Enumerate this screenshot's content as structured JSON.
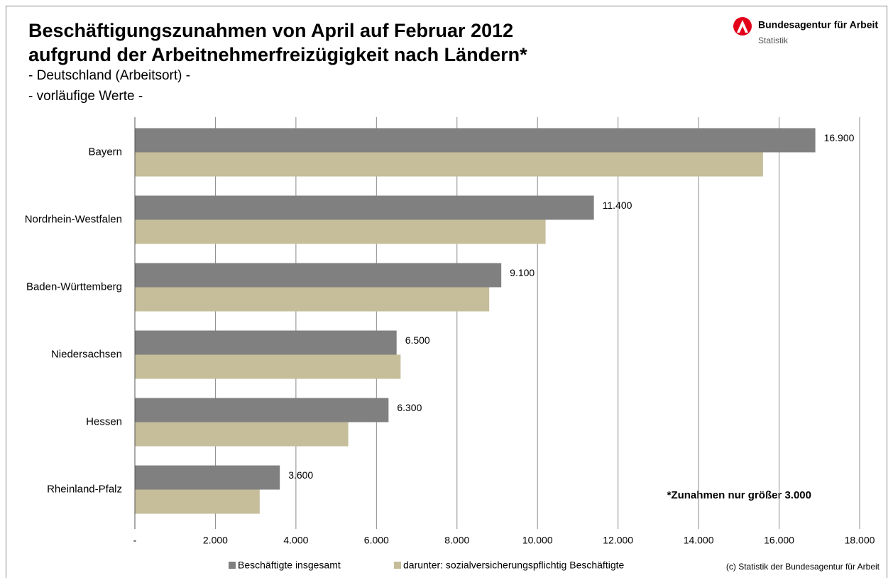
{
  "chart_data": {
    "type": "hbar",
    "title": "Beschäftigungszunahmen von April auf Februar 2012",
    "title_line2": "aufgrund der Arbeitnehmerfreizügigkeit nach Ländern*",
    "subtitle": "- Deutschland (Arbeitsort) -",
    "subtitle2": "- vorläufige Werte -",
    "logo_text": "Bundesagentur für Arbeit",
    "logo_subtext": "Statistik",
    "annotation": "*Zunahmen nur größer 3.000",
    "source": "(c) Statistik der Bundesagentur für Arbeit",
    "categories": [
      "Bayern",
      "Nordrhein-Westfalen",
      "Baden-Württemberg",
      "Niedersachsen",
      "Hessen",
      "Rheinland-Pfalz"
    ],
    "series": [
      {
        "name": "Beschäftigte insgesamt",
        "color": "#808080",
        "values": [
          16900,
          11400,
          9100,
          6500,
          6300,
          3600
        ],
        "value_labels": [
          "16.900",
          "11.400",
          "9.100",
          "6.500",
          "6.300",
          "3.600"
        ]
      },
      {
        "name": "darunter: sozialversicherungspflichtig Beschäftigte",
        "color": "#c6bd9a",
        "values": [
          15600,
          10200,
          8800,
          6600,
          5300,
          3100
        ]
      }
    ],
    "xlim": [
      0,
      18000
    ],
    "xticks": [
      {
        "value": 0,
        "label": "-"
      },
      {
        "value": 2000,
        "label": "2.000"
      },
      {
        "value": 4000,
        "label": "4.000"
      },
      {
        "value": 6000,
        "label": "6.000"
      },
      {
        "value": 8000,
        "label": "8.000"
      },
      {
        "value": 10000,
        "label": "10.000"
      },
      {
        "value": 12000,
        "label": "12.000"
      },
      {
        "value": 14000,
        "label": "14.000"
      },
      {
        "value": 16000,
        "label": "16.000"
      },
      {
        "value": 18000,
        "label": "18.000"
      }
    ],
    "grid": true,
    "legend": "bottom"
  }
}
